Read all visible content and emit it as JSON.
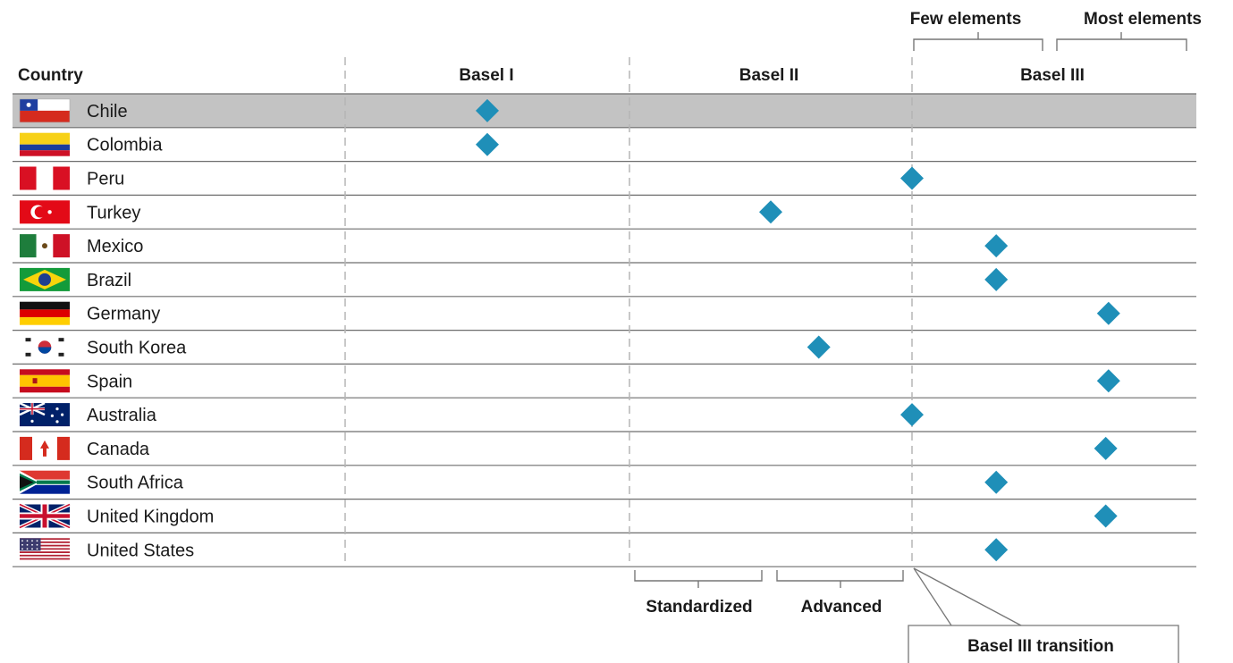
{
  "chart_data": {
    "type": "scatter",
    "header": {
      "country": "Country",
      "columns": [
        "Basel I",
        "Basel II",
        "Basel III"
      ]
    },
    "top_brackets": [
      "Few elements",
      "Most elements"
    ],
    "bottom_brackets": [
      "Standardized",
      "Advanced"
    ],
    "callout": "Basel III transition",
    "highlight_country": "Chile",
    "marker_color": "#1f8fb8",
    "rows": [
      {
        "country": "Chile",
        "flag": "chile-flag",
        "stage": 0.5
      },
      {
        "country": "Colombia",
        "flag": "colombia-flag",
        "stage": 0.5
      },
      {
        "country": "Peru",
        "flag": "peru-flag",
        "stage": 2.0
      },
      {
        "country": "Turkey",
        "flag": "turkey-flag",
        "stage": 1.5
      },
      {
        "country": "Mexico",
        "flag": "mexico-flag",
        "stage": 2.3
      },
      {
        "country": "Brazil",
        "flag": "brazil-flag",
        "stage": 2.3
      },
      {
        "country": "Germany",
        "flag": "germany-flag",
        "stage": 2.7
      },
      {
        "country": "South Korea",
        "flag": "south-korea-flag",
        "stage": 1.67
      },
      {
        "country": "Spain",
        "flag": "spain-flag",
        "stage": 2.7
      },
      {
        "country": "Australia",
        "flag": "australia-flag",
        "stage": 2.0
      },
      {
        "country": "Canada",
        "flag": "canada-flag",
        "stage": 2.69
      },
      {
        "country": "South Africa",
        "flag": "south-africa-flag",
        "stage": 2.3
      },
      {
        "country": "United Kingdom",
        "flag": "united-kingdom-flag",
        "stage": 2.69
      },
      {
        "country": "United States",
        "flag": "united-states-flag",
        "stage": 2.3
      }
    ]
  }
}
